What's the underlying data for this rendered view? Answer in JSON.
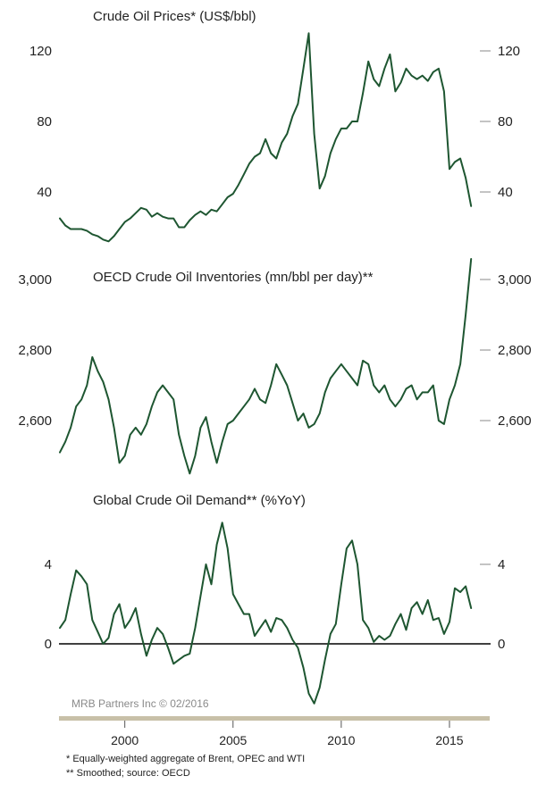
{
  "chart_data": [
    {
      "type": "line",
      "title": "Crude Oil Prices* (US$/bbl)",
      "ylim": [
        10,
        140
      ],
      "yticks": [
        40,
        80,
        120
      ],
      "ytick_labels": [
        "40",
        "80",
        "120"
      ],
      "color": "#1e5631",
      "series": [
        {
          "x": [
            1997.0,
            1997.25,
            1997.5,
            1997.75,
            1998.0,
            1998.25,
            1998.5,
            1998.75,
            1999.0,
            1999.25,
            1999.5,
            1999.75,
            2000.0,
            2000.25,
            2000.5,
            2000.75,
            2001.0,
            2001.25,
            2001.5,
            2001.75,
            2002.0,
            2002.25,
            2002.5,
            2002.75,
            2003.0,
            2003.25,
            2003.5,
            2003.75,
            2004.0,
            2004.25,
            2004.5,
            2004.75,
            2005.0,
            2005.25,
            2005.5,
            2005.75,
            2006.0,
            2006.25,
            2006.5,
            2006.75,
            2007.0,
            2007.25,
            2007.5,
            2007.75,
            2008.0,
            2008.25,
            2008.5,
            2008.75,
            2009.0,
            2009.25,
            2009.5,
            2009.75,
            2010.0,
            2010.25,
            2010.5,
            2010.75,
            2011.0,
            2011.25,
            2011.5,
            2011.75,
            2012.0,
            2012.25,
            2012.5,
            2012.75,
            2013.0,
            2013.25,
            2013.5,
            2013.75,
            2014.0,
            2014.25,
            2014.5,
            2014.75,
            2015.0,
            2015.25,
            2015.5,
            2015.75,
            2016.0
          ],
          "values": [
            25,
            21,
            19,
            19,
            19,
            18,
            16,
            15,
            13,
            12,
            15,
            19,
            23,
            25,
            28,
            31,
            30,
            26,
            28,
            26,
            25,
            25,
            20,
            20,
            24,
            27,
            29,
            27,
            30,
            29,
            33,
            37,
            39,
            44,
            50,
            56,
            60,
            62,
            70,
            62,
            59,
            68,
            73,
            83,
            90,
            110,
            130,
            73,
            42,
            49,
            62,
            70,
            76,
            76,
            80,
            80,
            96,
            114,
            104,
            100,
            110,
            118,
            97,
            102,
            110,
            106,
            104,
            106,
            103,
            108,
            110,
            97,
            53,
            57,
            59,
            48,
            32
          ]
        }
      ]
    },
    {
      "type": "line",
      "title": "OECD Crude Oil Inventories (mn/bbl per day)**",
      "ylim": [
        2425,
        3100
      ],
      "yticks": [
        2600,
        2800,
        3000
      ],
      "ytick_labels": [
        "2,600",
        "2,800",
        "3,000"
      ],
      "color": "#1e5631",
      "series": [
        {
          "x": [
            1997.0,
            1997.25,
            1997.5,
            1997.75,
            1998.0,
            1998.25,
            1998.5,
            1998.75,
            1999.0,
            1999.25,
            1999.5,
            1999.75,
            2000.0,
            2000.25,
            2000.5,
            2000.75,
            2001.0,
            2001.25,
            2001.5,
            2001.75,
            2002.0,
            2002.25,
            2002.5,
            2002.75,
            2003.0,
            2003.25,
            2003.5,
            2003.75,
            2004.0,
            2004.25,
            2004.5,
            2004.75,
            2005.0,
            2005.25,
            2005.5,
            2005.75,
            2006.0,
            2006.25,
            2006.5,
            2006.75,
            2007.0,
            2007.25,
            2007.5,
            2007.75,
            2008.0,
            2008.25,
            2008.5,
            2008.75,
            2009.0,
            2009.25,
            2009.5,
            2009.75,
            2010.0,
            2010.25,
            2010.5,
            2010.75,
            2011.0,
            2011.25,
            2011.5,
            2011.75,
            2012.0,
            2012.25,
            2012.5,
            2012.75,
            2013.0,
            2013.25,
            2013.5,
            2013.75,
            2014.0,
            2014.25,
            2014.5,
            2014.75,
            2015.0,
            2015.25,
            2015.5,
            2015.75,
            2016.0
          ],
          "values": [
            2510,
            2540,
            2580,
            2640,
            2660,
            2700,
            2780,
            2740,
            2710,
            2660,
            2580,
            2480,
            2500,
            2560,
            2580,
            2560,
            2590,
            2640,
            2680,
            2700,
            2680,
            2660,
            2560,
            2500,
            2450,
            2500,
            2580,
            2610,
            2540,
            2480,
            2540,
            2590,
            2600,
            2620,
            2640,
            2660,
            2690,
            2660,
            2650,
            2700,
            2760,
            2730,
            2700,
            2650,
            2600,
            2620,
            2580,
            2590,
            2620,
            2680,
            2720,
            2740,
            2760,
            2740,
            2720,
            2700,
            2770,
            2760,
            2700,
            2680,
            2700,
            2660,
            2640,
            2660,
            2690,
            2700,
            2660,
            2680,
            2680,
            2700,
            2600,
            2590,
            2660,
            2700,
            2760,
            2900,
            3090
          ]
        }
      ]
    },
    {
      "type": "line",
      "title": "Global Crude Oil Demand** (%YoY)",
      "ylim": [
        -3.5,
        6.5
      ],
      "yticks": [
        0,
        4
      ],
      "ytick_labels": [
        "0",
        "4"
      ],
      "color": "#1e5631",
      "series": [
        {
          "x": [
            1997.0,
            1997.25,
            1997.5,
            1997.75,
            1998.0,
            1998.25,
            1998.5,
            1998.75,
            1999.0,
            1999.25,
            1999.5,
            1999.75,
            2000.0,
            2000.25,
            2000.5,
            2000.75,
            2001.0,
            2001.25,
            2001.5,
            2001.75,
            2002.0,
            2002.25,
            2002.5,
            2002.75,
            2003.0,
            2003.25,
            2003.5,
            2003.75,
            2004.0,
            2004.25,
            2004.5,
            2004.75,
            2005.0,
            2005.25,
            2005.5,
            2005.75,
            2006.0,
            2006.25,
            2006.5,
            2006.75,
            2007.0,
            2007.25,
            2007.5,
            2007.75,
            2008.0,
            2008.25,
            2008.5,
            2008.75,
            2009.0,
            2009.25,
            2009.5,
            2009.75,
            2010.0,
            2010.25,
            2010.5,
            2010.75,
            2011.0,
            2011.25,
            2011.5,
            2011.75,
            2012.0,
            2012.25,
            2012.5,
            2012.75,
            2013.0,
            2013.25,
            2013.5,
            2013.75,
            2014.0,
            2014.25,
            2014.5,
            2014.75,
            2015.0,
            2015.25,
            2015.5,
            2015.75,
            2016.0
          ],
          "values": [
            0.8,
            1.2,
            2.5,
            3.7,
            3.4,
            3.0,
            1.2,
            0.6,
            0.0,
            0.3,
            1.5,
            2.0,
            0.8,
            1.2,
            1.8,
            0.5,
            -0.6,
            0.2,
            0.8,
            0.5,
            -0.2,
            -1.0,
            -0.8,
            -0.6,
            -0.5,
            0.8,
            2.4,
            4.0,
            3.0,
            5.0,
            6.1,
            4.8,
            2.5,
            2.0,
            1.5,
            1.5,
            0.4,
            0.8,
            1.2,
            0.6,
            1.3,
            1.2,
            0.8,
            0.2,
            -0.2,
            -1.2,
            -2.5,
            -3.0,
            -2.2,
            -0.8,
            0.5,
            1.0,
            3.0,
            4.8,
            5.2,
            4.0,
            1.2,
            0.8,
            0.1,
            0.4,
            0.2,
            0.4,
            1.0,
            1.5,
            0.7,
            1.8,
            2.1,
            1.5,
            2.2,
            1.2,
            1.3,
            0.5,
            1.1,
            2.8,
            2.6,
            2.9,
            1.8
          ]
        }
      ]
    }
  ],
  "x_axis": {
    "ticks": [
      2000,
      2005,
      2010,
      2015
    ],
    "labels": [
      "2000",
      "2005",
      "2010",
      "2015"
    ],
    "range": [
      1997.0,
      2016.9
    ]
  },
  "credit": "MRB Partners Inc © 02/2016",
  "footnotes": [
    "*  Equally-weighted aggregate of Brent, OPEC and WTI",
    "** Smoothed; source: OECD"
  ],
  "colors": {
    "line": "#1e5631",
    "axis_band": "#c8c0a8",
    "zero_line": "#000000"
  }
}
